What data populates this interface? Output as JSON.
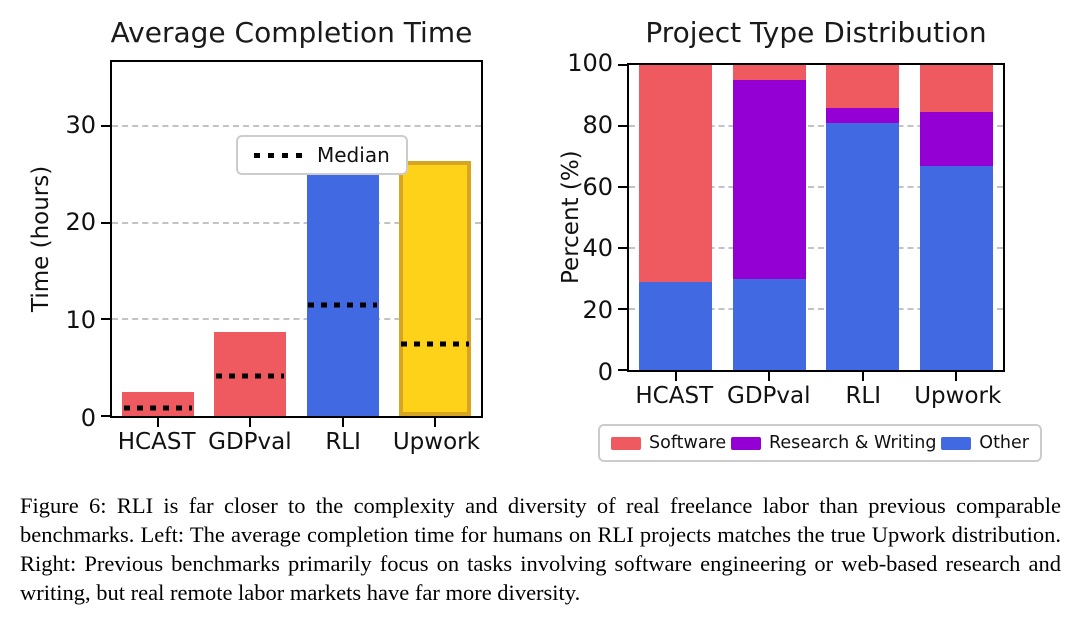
{
  "figure": {
    "caption": "Figure 6: RLI is far closer to the complexity and diversity of real freelance labor than previous comparable benchmarks. Left: The average completion time for humans on RLI projects matches the true Upwork distribution. Right: Previous benchmarks primarily focus on tasks involving software engineering or web-based research and writing, but real remote labor markets have far more diversity."
  },
  "colors": {
    "software_red": "#EE5A5F",
    "research_purple": "#9400D3",
    "other_blue": "#4169E1",
    "upwork_gold": "#FFD21A",
    "upwork_gold_border": "#D9A521",
    "grid_gray": "#C3C3C3"
  },
  "chart_data": [
    {
      "type": "bar",
      "title": "Average Completion Time",
      "ylabel": "Time (hours)",
      "categories": [
        "HCAST",
        "GDPval",
        "RLI",
        "Upwork"
      ],
      "values": [
        2.5,
        8.7,
        29.0,
        26.4
      ],
      "medians": [
        0.8,
        4.1,
        11.5,
        7.4
      ],
      "bar_colors": [
        "#EE5A5F",
        "#EE5A5F",
        "#4169E1",
        "#FFD21A"
      ],
      "bar_edge_colors": [
        null,
        null,
        null,
        "#D9A521"
      ],
      "yticks": [
        0,
        10,
        20,
        30
      ],
      "ylim": [
        0,
        36.6
      ],
      "grid": "dashed horizontal",
      "legend_label": "Median",
      "legend_position": "upper left"
    },
    {
      "type": "bar",
      "stacked": true,
      "title": "Project Type Distribution",
      "ylabel": "Percent (%)",
      "categories": [
        "HCAST",
        "GDPval",
        "RLI",
        "Upwork"
      ],
      "series": [
        {
          "name": "Other",
          "color": "#4169E1",
          "values": [
            29,
            30,
            81,
            67
          ]
        },
        {
          "name": "Research & Writing",
          "color": "#9400D3",
          "values": [
            0,
            65,
            5,
            17.5
          ]
        },
        {
          "name": "Software",
          "color": "#EE5A5F",
          "values": [
            71,
            5,
            14,
            15.5
          ]
        }
      ],
      "yticks": [
        0,
        20,
        40,
        60,
        80,
        100
      ],
      "ylim": [
        0,
        100
      ],
      "grid": "dashed horizontal",
      "legend_items": [
        {
          "label": "Software",
          "color": "#EE5A5F"
        },
        {
          "label": "Research & Writing",
          "color": "#9400D3"
        },
        {
          "label": "Other",
          "color": "#4169E1"
        }
      ],
      "legend_position": "below"
    }
  ]
}
